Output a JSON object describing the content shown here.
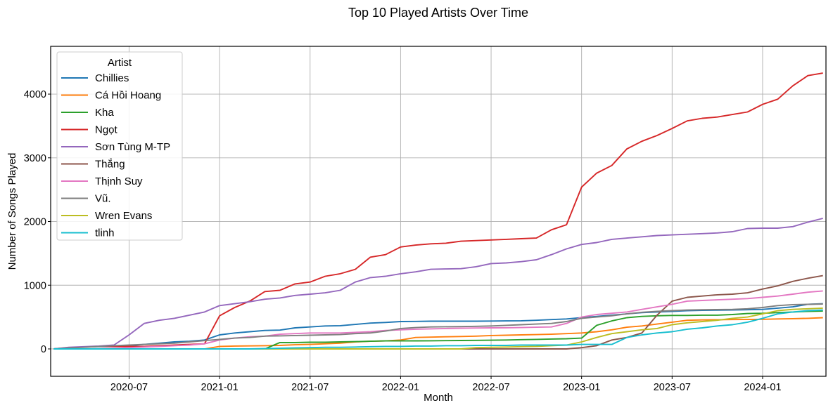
{
  "chart_data": {
    "type": "line",
    "title": "Top 10 Played Artists Over Time",
    "xlabel": "Month",
    "ylabel": "Number of Songs Played",
    "xlim": [
      "2020-02",
      "2024-05"
    ],
    "ylim": [
      -430,
      4750
    ],
    "x_ticks": [
      "2020-07",
      "2021-01",
      "2021-07",
      "2022-01",
      "2022-07",
      "2023-01",
      "2023-07",
      "2024-01"
    ],
    "y_ticks": [
      0,
      1000,
      2000,
      3000,
      4000
    ],
    "grid": true,
    "legend": {
      "title": "Artist",
      "placement": "top-left"
    },
    "x": [
      "2020-02",
      "2020-03",
      "2020-04",
      "2020-05",
      "2020-06",
      "2020-07",
      "2020-08",
      "2020-09",
      "2020-10",
      "2020-11",
      "2020-12",
      "2021-01",
      "2021-02",
      "2021-03",
      "2021-04",
      "2021-05",
      "2021-06",
      "2021-07",
      "2021-08",
      "2021-09",
      "2021-10",
      "2021-11",
      "2021-12",
      "2022-01",
      "2022-02",
      "2022-03",
      "2022-04",
      "2022-05",
      "2022-06",
      "2022-07",
      "2022-08",
      "2022-09",
      "2022-10",
      "2022-11",
      "2022-12",
      "2023-01",
      "2023-02",
      "2023-03",
      "2023-04",
      "2023-05",
      "2023-06",
      "2023-07",
      "2023-08",
      "2023-09",
      "2023-10",
      "2023-11",
      "2023-12",
      "2024-01",
      "2024-02",
      "2024-03",
      "2024-04",
      "2024-05"
    ],
    "series": [
      {
        "name": "Chillies",
        "color": "#1f77b4",
        "values": [
          0,
          20,
          30,
          35,
          40,
          50,
          70,
          90,
          110,
          120,
          140,
          220,
          250,
          270,
          290,
          295,
          330,
          345,
          360,
          365,
          385,
          405,
          415,
          430,
          432,
          435,
          435,
          435,
          435,
          437,
          440,
          442,
          450,
          460,
          470,
          490,
          510,
          530,
          550,
          570,
          580,
          590,
          600,
          605,
          608,
          612,
          615,
          620,
          640,
          660,
          700,
          710
        ]
      },
      {
        "name": "Cá Hồi Hoang",
        "color": "#ff7f0e",
        "values": [
          0,
          0,
          0,
          0,
          0,
          0,
          0,
          0,
          0,
          0,
          0,
          40,
          45,
          47,
          50,
          55,
          65,
          70,
          80,
          90,
          110,
          120,
          125,
          140,
          180,
          185,
          190,
          195,
          200,
          210,
          215,
          220,
          225,
          230,
          240,
          250,
          270,
          300,
          340,
          360,
          390,
          420,
          450,
          455,
          458,
          460,
          462,
          465,
          470,
          475,
          480,
          490
        ]
      },
      {
        "name": "Kha",
        "color": "#2ca02c",
        "values": [
          0,
          0,
          0,
          0,
          0,
          0,
          0,
          0,
          0,
          0,
          0,
          0,
          0,
          0,
          0,
          100,
          100,
          105,
          105,
          110,
          115,
          120,
          125,
          125,
          127,
          128,
          130,
          132,
          134,
          136,
          140,
          145,
          150,
          155,
          160,
          170,
          370,
          440,
          490,
          510,
          520,
          525,
          525,
          530,
          530,
          540,
          555,
          560,
          570,
          580,
          590,
          595
        ]
      },
      {
        "name": "Ngọt",
        "color": "#d62728",
        "values": [
          0,
          20,
          30,
          40,
          40,
          40,
          40,
          50,
          60,
          70,
          80,
          520,
          650,
          750,
          900,
          920,
          1020,
          1050,
          1140,
          1180,
          1250,
          1440,
          1480,
          1600,
          1630,
          1650,
          1660,
          1690,
          1700,
          1710,
          1720,
          1730,
          1740,
          1870,
          1950,
          2540,
          2760,
          2880,
          3140,
          3260,
          3350,
          3460,
          3580,
          3620,
          3640,
          3680,
          3720,
          3840,
          3920,
          4130,
          4290,
          4330
        ]
      },
      {
        "name": "Sơn Tùng M-TP",
        "color": "#9467bd",
        "values": [
          0,
          25,
          35,
          45,
          60,
          220,
          400,
          450,
          480,
          530,
          580,
          680,
          710,
          740,
          780,
          800,
          840,
          860,
          880,
          920,
          1050,
          1120,
          1140,
          1180,
          1210,
          1250,
          1255,
          1260,
          1290,
          1340,
          1350,
          1370,
          1400,
          1480,
          1570,
          1640,
          1670,
          1720,
          1740,
          1760,
          1780,
          1790,
          1800,
          1810,
          1820,
          1840,
          1890,
          1895,
          1895,
          1920,
          1990,
          2050
        ]
      },
      {
        "name": "Thắng",
        "color": "#8c564b",
        "values": [
          0,
          0,
          0,
          0,
          0,
          0,
          0,
          0,
          0,
          0,
          0,
          0,
          0,
          0,
          0,
          0,
          0,
          0,
          0,
          0,
          0,
          0,
          0,
          0,
          0,
          0,
          0,
          0,
          0,
          0,
          0,
          0,
          0,
          0,
          0,
          20,
          50,
          140,
          180,
          250,
          530,
          750,
          810,
          830,
          850,
          860,
          880,
          940,
          990,
          1060,
          1110,
          1150
        ]
      },
      {
        "name": "Thịnh Suy",
        "color": "#e377c2",
        "values": [
          0,
          0,
          0,
          0,
          10,
          20,
          30,
          40,
          50,
          60,
          80,
          140,
          170,
          190,
          200,
          230,
          240,
          250,
          250,
          250,
          260,
          270,
          290,
          300,
          310,
          315,
          320,
          325,
          328,
          330,
          332,
          335,
          340,
          345,
          400,
          500,
          540,
          560,
          580,
          620,
          660,
          700,
          750,
          760,
          770,
          780,
          790,
          810,
          830,
          860,
          890,
          910
        ]
      },
      {
        "name": "Vũ.",
        "color": "#7f7f7f",
        "values": [
          0,
          15,
          25,
          40,
          50,
          60,
          70,
          80,
          90,
          110,
          130,
          150,
          170,
          180,
          200,
          205,
          210,
          215,
          220,
          225,
          240,
          250,
          280,
          320,
          335,
          345,
          348,
          350,
          355,
          360,
          370,
          380,
          390,
          400,
          430,
          480,
          500,
          520,
          550,
          575,
          590,
          600,
          610,
          615,
          618,
          620,
          630,
          650,
          680,
          695,
          700,
          705
        ]
      },
      {
        "name": "Wren Evans",
        "color": "#bcbd22",
        "values": [
          0,
          0,
          0,
          0,
          0,
          0,
          0,
          0,
          0,
          0,
          0,
          0,
          0,
          0,
          0,
          0,
          0,
          0,
          0,
          0,
          0,
          0,
          0,
          0,
          0,
          0,
          0,
          0,
          20,
          25,
          30,
          35,
          40,
          50,
          60,
          110,
          180,
          240,
          270,
          300,
          320,
          380,
          410,
          430,
          450,
          480,
          500,
          550,
          600,
          620,
          630,
          640
        ]
      },
      {
        "name": "tlinh",
        "color": "#17becf",
        "values": [
          0,
          0,
          0,
          0,
          0,
          0,
          0,
          0,
          0,
          0,
          0,
          0,
          0,
          0,
          5,
          10,
          15,
          20,
          25,
          25,
          30,
          35,
          40,
          40,
          45,
          45,
          50,
          50,
          55,
          55,
          55,
          60,
          60,
          60,
          60,
          70,
          70,
          70,
          180,
          220,
          250,
          270,
          310,
          330,
          360,
          380,
          420,
          480,
          550,
          580,
          600,
          610
        ]
      }
    ]
  }
}
